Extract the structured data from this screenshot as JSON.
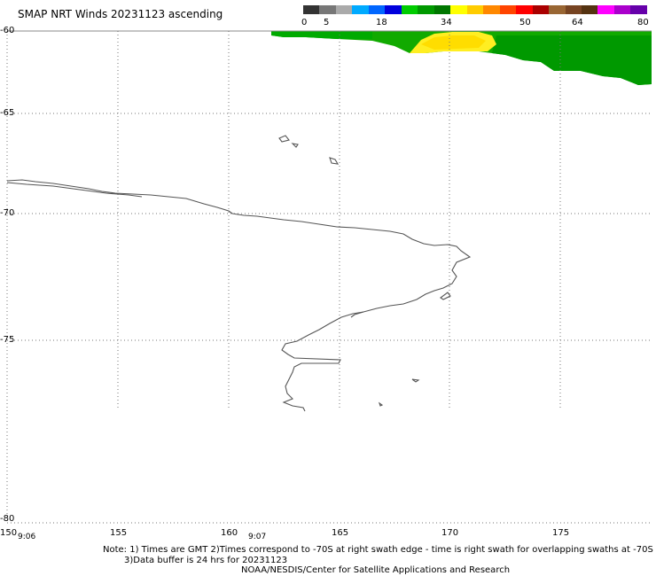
{
  "header": {
    "title": "SMAP NRT Winds 20231123 ascending"
  },
  "color_scale": {
    "colors": [
      "#333333",
      "#777777",
      "#aaaaaa",
      "#00aaff",
      "#0066ff",
      "#0000dd",
      "#00cc00",
      "#009900",
      "#007700",
      "#ffff00",
      "#ffcc00",
      "#ff8800",
      "#ff4400",
      "#ff0000",
      "#aa0000",
      "#996633",
      "#774422",
      "#553311",
      "#ff00ff",
      "#aa00cc",
      "#6600aa"
    ],
    "ticks": [
      "0",
      "5",
      "18",
      "34",
      "50",
      "64",
      "80"
    ]
  },
  "axes": {
    "lat_labels": [
      "-60",
      "-65",
      "-70",
      "-75",
      "-80"
    ],
    "lon_labels": [
      "150",
      "155",
      "160",
      "165",
      "170",
      "175"
    ]
  },
  "times": [
    "9:06",
    "9:07"
  ],
  "notes": {
    "line1": "Note: 1) Times are GMT 2)Times correspond to -70S at right swath edge - time is right swath for overlapping swaths at -70S",
    "line2": "3)Data buffer is 24 hrs for 20231123",
    "line3": "NOAA/NESDIS/Center for Satellite Applications and Research"
  },
  "legend_colors": {
    "coastline": "#555555",
    "grid": "#777777",
    "wind_green_dark": "#008800",
    "wind_green": "#11bb00",
    "wind_yellow": "#ffee22"
  }
}
